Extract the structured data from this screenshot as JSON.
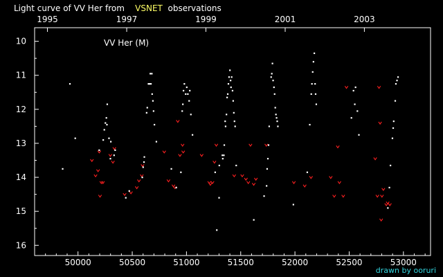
{
  "header": {
    "title_prefix": "Light curve of VV Her from",
    "title_source": "VSNET",
    "title_suffix": "observations"
  },
  "credit": "drawn by ooruri",
  "colors": {
    "background": "#000000",
    "axis": "#ffffff",
    "observation": "#ffffff",
    "upper_limit": "#ff2020",
    "highlight": "#ffff66",
    "credit": "#33d6e0"
  },
  "chart_data": {
    "type": "scatter",
    "series_label": "VV Her (M)",
    "xlim": [
      49600,
      53250
    ],
    "ylim": [
      16.3,
      9.6
    ],
    "x_ticks": [
      50000,
      50500,
      51000,
      51500,
      52000,
      52500,
      53000
    ],
    "x_tick_labels": [
      "50000",
      "50500",
      "51000",
      "51500",
      "52000",
      "52500",
      "53000"
    ],
    "y_ticks": [
      10,
      11,
      12,
      13,
      14,
      15,
      16
    ],
    "y_tick_labels": [
      "10",
      "11",
      "12",
      "13",
      "14",
      "15",
      "16"
    ],
    "year_ticks": [
      49718,
      50449,
      51179,
      51910,
      52640
    ],
    "year_labels": [
      "1995",
      "1997",
      "1999",
      "2001",
      "2003"
    ],
    "series": [
      {
        "kind": "observation",
        "marker": "dot",
        "points": [
          [
            49858,
            13.75
          ],
          [
            49925,
            11.25
          ],
          [
            49974,
            12.85
          ],
          [
            50195,
            13.2
          ],
          [
            50232,
            12.9
          ],
          [
            50242,
            12.6
          ],
          [
            50252,
            12.4
          ],
          [
            50261,
            12.25
          ],
          [
            50266,
            12.45
          ],
          [
            50269,
            11.85
          ],
          [
            50285,
            12.85
          ],
          [
            50298,
            13.45
          ],
          [
            50302,
            12.95
          ],
          [
            50332,
            13.35
          ],
          [
            50342,
            13.2
          ],
          [
            50440,
            14.6
          ],
          [
            50472,
            14.4
          ],
          [
            50592,
            14.0
          ],
          [
            50600,
            13.7
          ],
          [
            50608,
            13.55
          ],
          [
            50611,
            13.4
          ],
          [
            50632,
            12.1
          ],
          [
            50638,
            11.95
          ],
          [
            50649,
            11.25
          ],
          [
            50658,
            11.25
          ],
          [
            50666,
            10.95
          ],
          [
            50672,
            11.25
          ],
          [
            50680,
            10.95
          ],
          [
            50683,
            11.55
          ],
          [
            50690,
            11.75
          ],
          [
            50696,
            12.05
          ],
          [
            50704,
            12.45
          ],
          [
            50722,
            12.95
          ],
          [
            50860,
            13.75
          ],
          [
            50905,
            14.3
          ],
          [
            50948,
            13.85
          ],
          [
            50960,
            12.05
          ],
          [
            50966,
            11.85
          ],
          [
            50972,
            11.45
          ],
          [
            50980,
            11.25
          ],
          [
            50992,
            11.55
          ],
          [
            51002,
            11.35
          ],
          [
            51012,
            11.55
          ],
          [
            51024,
            11.75
          ],
          [
            51030,
            11.45
          ],
          [
            51040,
            12.15
          ],
          [
            51055,
            12.75
          ],
          [
            51264,
            13.85
          ],
          [
            51279,
            15.55
          ],
          [
            51300,
            14.6
          ],
          [
            51302,
            13.65
          ],
          [
            51330,
            13.35
          ],
          [
            51334,
            13.45
          ],
          [
            51344,
            13.35
          ],
          [
            51348,
            13.05
          ],
          [
            51356,
            12.35
          ],
          [
            51360,
            12.5
          ],
          [
            51368,
            12.15
          ],
          [
            51374,
            11.65
          ],
          [
            51380,
            11.55
          ],
          [
            51386,
            11.25
          ],
          [
            51392,
            11.05
          ],
          [
            51400,
            10.85
          ],
          [
            51406,
            11.15
          ],
          [
            51410,
            11.35
          ],
          [
            51416,
            11.05
          ],
          [
            51424,
            11.45
          ],
          [
            51430,
            11.75
          ],
          [
            51436,
            12.1
          ],
          [
            51442,
            12.35
          ],
          [
            51448,
            12.5
          ],
          [
            51458,
            13.65
          ],
          [
            51620,
            15.25
          ],
          [
            51715,
            14.55
          ],
          [
            51738,
            14.25
          ],
          [
            51743,
            13.75
          ],
          [
            51750,
            13.45
          ],
          [
            51756,
            13.05
          ],
          [
            51762,
            12.5
          ],
          [
            51780,
            11.05
          ],
          [
            51786,
            10.95
          ],
          [
            51792,
            10.65
          ],
          [
            51798,
            11.15
          ],
          [
            51806,
            11.35
          ],
          [
            51812,
            11.55
          ],
          [
            51818,
            11.95
          ],
          [
            51824,
            12.15
          ],
          [
            51830,
            12.25
          ],
          [
            51836,
            12.35
          ],
          [
            51842,
            12.5
          ],
          [
            51985,
            14.8
          ],
          [
            52113,
            13.85
          ],
          [
            52136,
            12.45
          ],
          [
            52150,
            11.55
          ],
          [
            52156,
            11.25
          ],
          [
            52163,
            10.9
          ],
          [
            52170,
            10.6
          ],
          [
            52178,
            10.35
          ],
          [
            52185,
            11.25
          ],
          [
            52190,
            11.55
          ],
          [
            52196,
            11.85
          ],
          [
            52520,
            12.25
          ],
          [
            52539,
            11.45
          ],
          [
            52551,
            11.85
          ],
          [
            52558,
            11.35
          ],
          [
            52575,
            12.05
          ],
          [
            52589,
            12.75
          ],
          [
            52856,
            14.9
          ],
          [
            52870,
            14.3
          ],
          [
            52880,
            13.65
          ],
          [
            52898,
            12.85
          ],
          [
            52905,
            12.55
          ],
          [
            52910,
            12.35
          ],
          [
            52924,
            11.75
          ],
          [
            52930,
            11.25
          ],
          [
            52940,
            11.15
          ],
          [
            52950,
            11.05
          ]
        ]
      },
      {
        "kind": "fainter-than",
        "marker": "v",
        "points": [
          [
            50128,
            13.5
          ],
          [
            50162,
            13.95
          ],
          [
            50185,
            13.8
          ],
          [
            50196,
            13.25
          ],
          [
            50203,
            14.55
          ],
          [
            50215,
            14.15
          ],
          [
            50230,
            14.15
          ],
          [
            50298,
            13.35
          ],
          [
            50322,
            13.55
          ],
          [
            50335,
            13.15
          ],
          [
            50430,
            14.5
          ],
          [
            50488,
            14.45
          ],
          [
            50542,
            14.3
          ],
          [
            50562,
            14.1
          ],
          [
            50588,
            13.95
          ],
          [
            50595,
            13.65
          ],
          [
            50795,
            13.25
          ],
          [
            50834,
            14.1
          ],
          [
            50880,
            14.25
          ],
          [
            50894,
            14.3
          ],
          [
            50920,
            12.35
          ],
          [
            50940,
            13.35
          ],
          [
            50964,
            13.05
          ],
          [
            50970,
            13.25
          ],
          [
            51140,
            13.35
          ],
          [
            51210,
            14.15
          ],
          [
            51220,
            14.2
          ],
          [
            51240,
            14.15
          ],
          [
            51258,
            13.55
          ],
          [
            51275,
            13.05
          ],
          [
            51440,
            13.95
          ],
          [
            51514,
            13.95
          ],
          [
            51548,
            14.05
          ],
          [
            51570,
            14.15
          ],
          [
            51590,
            13.05
          ],
          [
            51620,
            14.2
          ],
          [
            51640,
            14.05
          ],
          [
            51736,
            13.05
          ],
          [
            51990,
            14.15
          ],
          [
            52090,
            14.25
          ],
          [
            52148,
            14.0
          ],
          [
            52330,
            14.0
          ],
          [
            52362,
            14.55
          ],
          [
            52395,
            13.1
          ],
          [
            52410,
            14.15
          ],
          [
            52445,
            14.55
          ],
          [
            52475,
            11.35
          ],
          [
            52740,
            13.45
          ],
          [
            52760,
            14.55
          ],
          [
            52775,
            11.35
          ],
          [
            52785,
            12.4
          ],
          [
            52795,
            15.25
          ],
          [
            52802,
            14.55
          ],
          [
            52815,
            14.35
          ],
          [
            52842,
            14.8
          ],
          [
            52855,
            14.75
          ],
          [
            52875,
            14.8
          ]
        ]
      }
    ]
  }
}
